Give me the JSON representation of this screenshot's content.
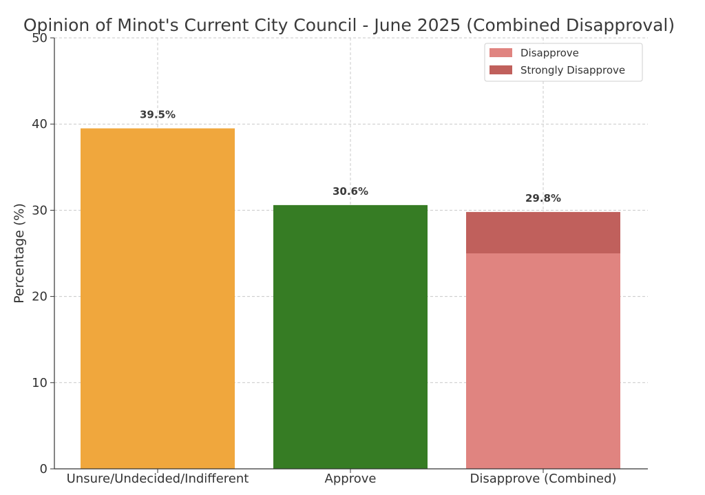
{
  "chart_data": {
    "type": "bar",
    "title": "Opinion of Minot's Current City Council - June 2025 (Combined Disapproval)",
    "xlabel": "",
    "ylabel": "Percentage (%)",
    "ylim": [
      0,
      50
    ],
    "yticks": [
      0,
      10,
      20,
      30,
      40,
      50
    ],
    "grid": true,
    "legend_position": "top-right",
    "categories": [
      "Unsure/Undecided/Indifferent",
      "Approve",
      "Disapprove (Combined)"
    ],
    "bars": [
      {
        "category": "Unsure/Undecided/Indifferent",
        "total": 39.5,
        "label": "39.5%",
        "color": "#f0a73d",
        "segments": [
          {
            "value": 39.5,
            "color": "#f0a73d"
          }
        ]
      },
      {
        "category": "Approve",
        "total": 30.6,
        "label": "30.6%",
        "color": "#367c24",
        "segments": [
          {
            "value": 30.6,
            "color": "#367c24"
          }
        ]
      },
      {
        "category": "Disapprove (Combined)",
        "total": 29.8,
        "label": "29.8%",
        "color": "#e08480",
        "segments": [
          {
            "name": "Disapprove",
            "value": 25.0,
            "color": "#e08480"
          },
          {
            "name": "Strongly Disapprove",
            "value": 4.8,
            "color": "#c0605c"
          }
        ]
      }
    ],
    "legend": [
      {
        "name": "Disapprove",
        "color": "#e08480"
      },
      {
        "name": "Strongly Disapprove",
        "color": "#c0605c"
      }
    ]
  }
}
